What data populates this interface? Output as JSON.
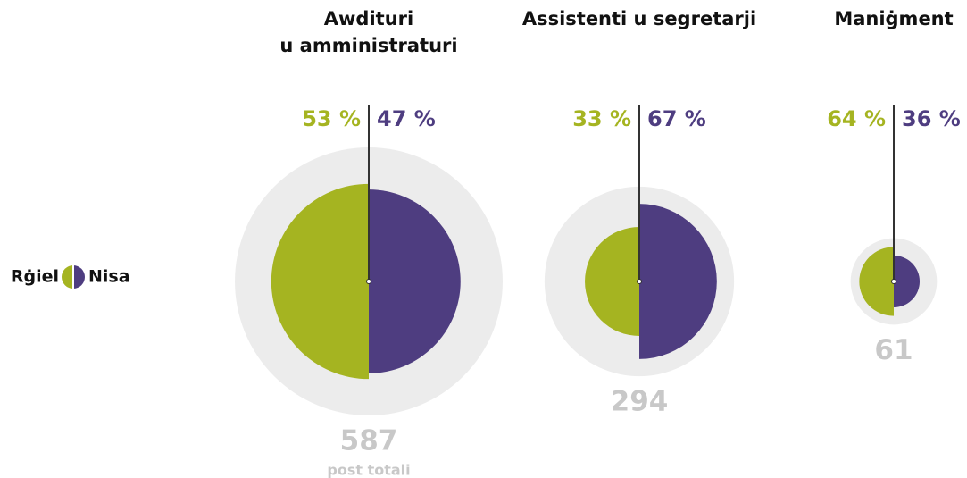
{
  "chart_data": {
    "type": "halfcircle",
    "groups": [
      [
        "Awdituri",
        "u amministraturi"
      ],
      [
        "Assistenti u segretarji"
      ],
      [
        "Maniġment"
      ]
    ],
    "series": [
      {
        "name": "Rġiel",
        "color": "#a5b421",
        "values": [
          53,
          33,
          64
        ],
        "value_labels": [
          "53 %",
          "33 %",
          "64 %"
        ]
      },
      {
        "name": "Nisa",
        "color": "#4e3d80",
        "values": [
          47,
          67,
          36
        ],
        "value_labels": [
          "47 %",
          "67 %",
          "36 %"
        ]
      }
    ],
    "totals": [
      587,
      294,
      61
    ],
    "total_label": "post totali",
    "total_color": "#ececec"
  }
}
